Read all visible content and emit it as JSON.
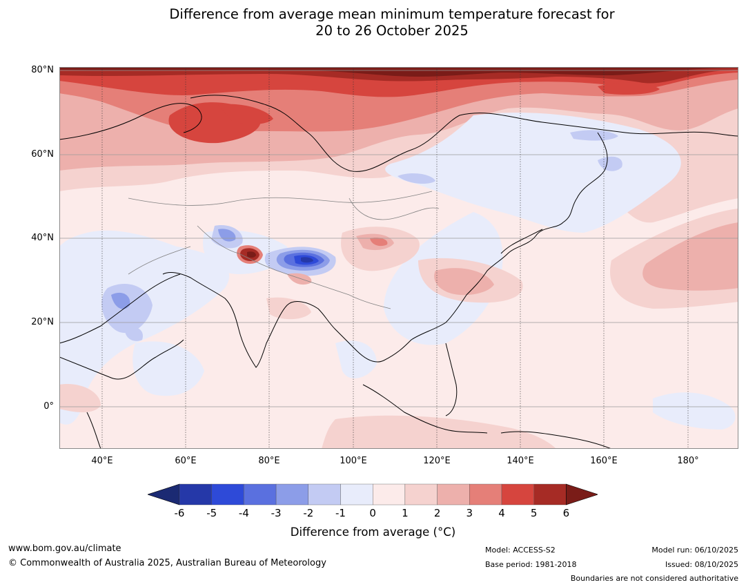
{
  "title": {
    "line1": "Difference from average mean minimum temperature forecast for",
    "line2": "20 to 26 October 2025"
  },
  "map": {
    "lat_labels": [
      "80°N",
      "60°N",
      "40°N",
      "20°N",
      "0°"
    ],
    "lon_labels": [
      "40°E",
      "60°E",
      "80°E",
      "100°E",
      "120°E",
      "140°E",
      "160°E",
      "180°"
    ],
    "lat_range": [
      -10,
      80
    ],
    "lon_range": [
      30,
      192
    ],
    "colors": {
      "above_0_1": "#fcebea",
      "above_1_2": "#f5d2cf",
      "above_2_3": "#edb0ac",
      "above_3_4": "#e57f78",
      "above_4_5": "#d6453e",
      "above_5_6": "#a62b25",
      "above_6": "#7a1c18",
      "below_0_1": "#e8ecfb",
      "below_1_2": "#c3cbf3",
      "below_2_3": "#8c9de8",
      "below_3_4": "#5a70df",
      "below_4_5": "#2e4ad8",
      "below_5_6": "#2538a8",
      "below_6": "#1b2a73"
    }
  },
  "colorbar": {
    "ticks": [
      "-6",
      "-5",
      "-4",
      "-3",
      "-2",
      "-1",
      "0",
      "1",
      "2",
      "3",
      "4",
      "5",
      "6"
    ],
    "colors": [
      "#2538a8",
      "#2e4ad8",
      "#5a70df",
      "#8c9de8",
      "#c3cbf3",
      "#e8ecfb",
      "#fcebea",
      "#f5d2cf",
      "#edb0ac",
      "#e57f78",
      "#d6453e",
      "#a62b25"
    ],
    "low_extend_color": "#1b2a73",
    "high_extend_color": "#7a1c18",
    "label": "Difference from average (°C)"
  },
  "footer": {
    "url": "www.bom.gov.au/climate",
    "copyright": "© Commonwealth of Australia 2025, Australian Bureau of Meteorology",
    "model": "Model: ACCESS-S2",
    "base_period": "Base period: 1981-2018",
    "model_run": "Model run: 06/10/2025",
    "issued": "Issued: 08/10/2025",
    "disclaimer": "Boundaries are not considered authoritative"
  }
}
